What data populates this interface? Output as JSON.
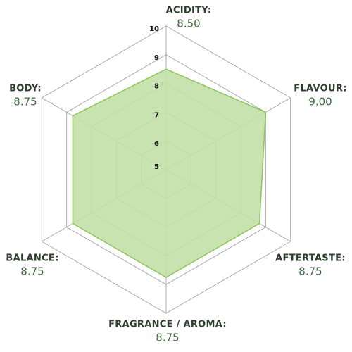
{
  "chart_data": {
    "type": "radar",
    "categories": [
      "ACIDITY:",
      "FLAVOUR:",
      "AFTERTASTE:",
      "FRAGRANCE / AROMA:",
      "BALANCE:",
      "BODY:"
    ],
    "values": [
      8.5,
      9.0,
      8.75,
      8.75,
      8.75,
      8.75
    ],
    "value_labels": [
      "8.50",
      "9.00",
      "8.75",
      "8.75",
      "8.75",
      "8.75"
    ],
    "ylim": [
      5,
      10
    ],
    "yticks": [
      5,
      6,
      7,
      8,
      9,
      10
    ],
    "color": "#8cc65a",
    "fill": "#c2e0a6"
  }
}
